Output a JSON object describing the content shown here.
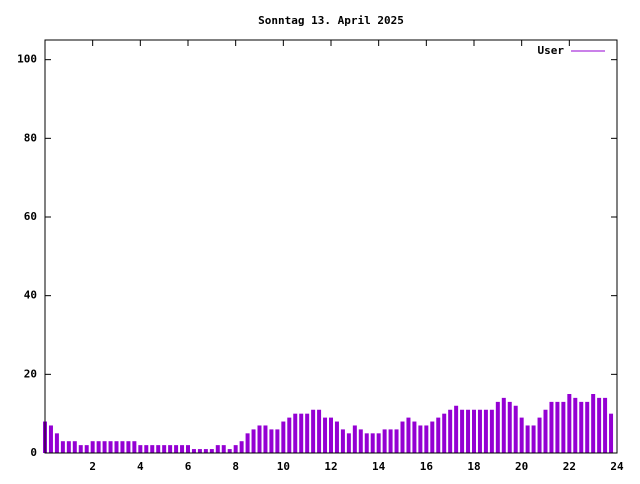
{
  "chart_data": {
    "type": "impulse",
    "title": "Sonntag 13. April 2025",
    "x": [
      0,
      0.25,
      0.5,
      0.75,
      1,
      1.25,
      1.5,
      1.75,
      2,
      2.25,
      2.5,
      2.75,
      3,
      3.25,
      3.5,
      3.75,
      4,
      4.25,
      4.5,
      4.75,
      5,
      5.25,
      5.5,
      5.75,
      6,
      6.25,
      6.5,
      6.75,
      7,
      7.25,
      7.5,
      7.75,
      8,
      8.25,
      8.5,
      8.75,
      9,
      9.25,
      9.5,
      9.75,
      10,
      10.25,
      10.5,
      10.75,
      11,
      11.25,
      11.5,
      11.75,
      12,
      12.25,
      12.5,
      12.75,
      13,
      13.25,
      13.5,
      13.75,
      14,
      14.25,
      14.5,
      14.75,
      15,
      15.25,
      15.5,
      15.75,
      16,
      16.25,
      16.5,
      16.75,
      17,
      17.25,
      17.5,
      17.75,
      18,
      18.25,
      18.5,
      18.75,
      19,
      19.25,
      19.5,
      19.75,
      20,
      20.25,
      20.5,
      20.75,
      21,
      21.25,
      21.5,
      21.75,
      22,
      22.25,
      22.5,
      22.75,
      23,
      23.25,
      23.5,
      23.75
    ],
    "series": [
      {
        "name": "User",
        "color": "#9400d3",
        "values": [
          8,
          7,
          5,
          3,
          3,
          3,
          2,
          2,
          3,
          3,
          3,
          3,
          3,
          3,
          3,
          3,
          2,
          2,
          2,
          2,
          2,
          2,
          2,
          2,
          2,
          1,
          1,
          1,
          1,
          2,
          2,
          1,
          2,
          3,
          5,
          6,
          7,
          7,
          6,
          6,
          8,
          9,
          10,
          10,
          10,
          11,
          11,
          9,
          9,
          8,
          6,
          5,
          7,
          6,
          5,
          5,
          5,
          6,
          6,
          6,
          8,
          9,
          8,
          7,
          7,
          8,
          9,
          10,
          11,
          12,
          11,
          11,
          11,
          11,
          11,
          11,
          13,
          14,
          13,
          12,
          9,
          7,
          7,
          9,
          11,
          13,
          13,
          13,
          15,
          14,
          13,
          13,
          15,
          14,
          14,
          10
        ]
      }
    ],
    "xlim": [
      0,
      24
    ],
    "xticks": [
      2,
      4,
      6,
      8,
      10,
      12,
      14,
      16,
      18,
      20,
      22,
      24
    ],
    "ylim": [
      0,
      105
    ],
    "yticks": [
      0,
      20,
      40,
      60,
      80,
      100
    ],
    "legend": "top-right"
  }
}
